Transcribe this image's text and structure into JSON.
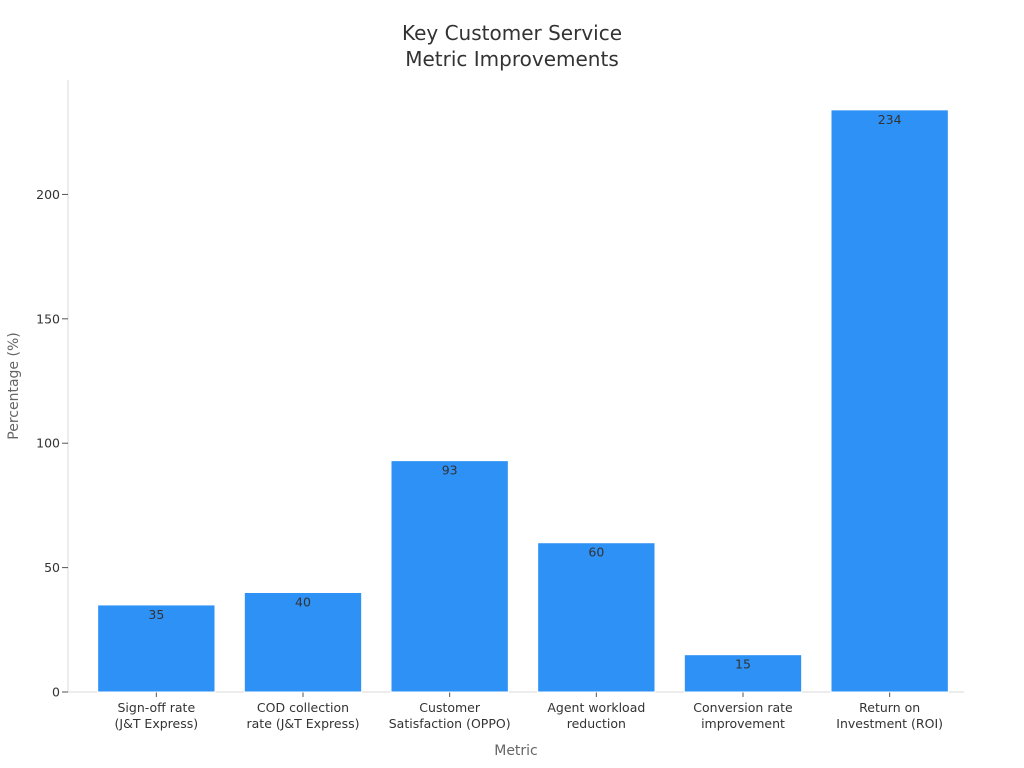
{
  "chart_data": {
    "type": "bar",
    "title": [
      "Key Customer Service",
      "Metric Improvements"
    ],
    "xlabel": "Metric",
    "ylabel": "Percentage (%)",
    "categories": [
      [
        "Sign-off rate",
        "(J&T Express)"
      ],
      [
        "COD collection",
        "rate (J&T Express)"
      ],
      [
        "Customer",
        "Satisfaction (OPPO)"
      ],
      [
        "Agent workload",
        "reduction"
      ],
      [
        "Conversion rate",
        "improvement"
      ],
      [
        "Return on",
        "Investment (ROI)"
      ]
    ],
    "values": [
      35,
      40,
      93,
      60,
      15,
      234
    ],
    "ylim": [
      0,
      246
    ],
    "yticks": [
      0,
      50,
      100,
      150,
      200
    ],
    "bar_color": "#2e91f6",
    "grid": false,
    "legend": "none"
  }
}
